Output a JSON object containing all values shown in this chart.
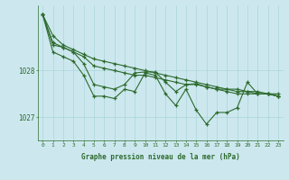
{
  "background_color": "#cce8ee",
  "grid_color": "#aad4da",
  "line_color": "#2d6a2d",
  "marker_color": "#2d6a2d",
  "xlabel": "Graphe pression niveau de la mer (hPa)",
  "ylim": [
    1026.5,
    1029.4
  ],
  "xlim": [
    -0.5,
    23.5
  ],
  "yticks": [
    1027,
    1028
  ],
  "xticks": [
    0,
    1,
    2,
    3,
    4,
    5,
    6,
    7,
    8,
    9,
    10,
    11,
    12,
    13,
    14,
    15,
    16,
    17,
    18,
    19,
    20,
    21,
    22,
    23
  ],
  "series": [
    [
      1029.2,
      1028.75,
      1028.55,
      1028.45,
      1028.35,
      1028.25,
      1028.2,
      1028.15,
      1028.1,
      1028.05,
      1028.0,
      1027.95,
      1027.9,
      1027.85,
      1027.8,
      1027.75,
      1027.7,
      1027.65,
      1027.6,
      1027.6,
      1027.55,
      1027.55,
      1027.5,
      1027.5
    ],
    [
      1029.2,
      1028.6,
      1028.5,
      1028.4,
      1028.3,
      1028.1,
      1028.05,
      1028.0,
      1027.95,
      1027.9,
      1027.9,
      1027.85,
      1027.8,
      1027.75,
      1027.7,
      1027.7,
      1027.65,
      1027.6,
      1027.6,
      1027.55,
      1027.55,
      1027.5,
      1027.5,
      1027.45
    ],
    [
      1029.2,
      1028.55,
      1028.5,
      1028.4,
      1028.15,
      1027.7,
      1027.65,
      1027.6,
      1027.7,
      1027.95,
      1027.97,
      1027.97,
      1027.75,
      1027.55,
      1027.7,
      1027.72,
      1027.65,
      1027.6,
      1027.55,
      1027.5,
      1027.5,
      1027.5,
      1027.5,
      1027.45
    ],
    [
      1029.2,
      1028.4,
      1028.3,
      1028.2,
      1027.9,
      1027.45,
      1027.45,
      1027.4,
      1027.6,
      1027.55,
      1027.95,
      1027.9,
      1027.5,
      1027.25,
      1027.6,
      1027.15,
      1026.85,
      1027.1,
      1027.1,
      1027.2,
      1027.75,
      1027.5,
      1027.5,
      1027.45
    ]
  ]
}
